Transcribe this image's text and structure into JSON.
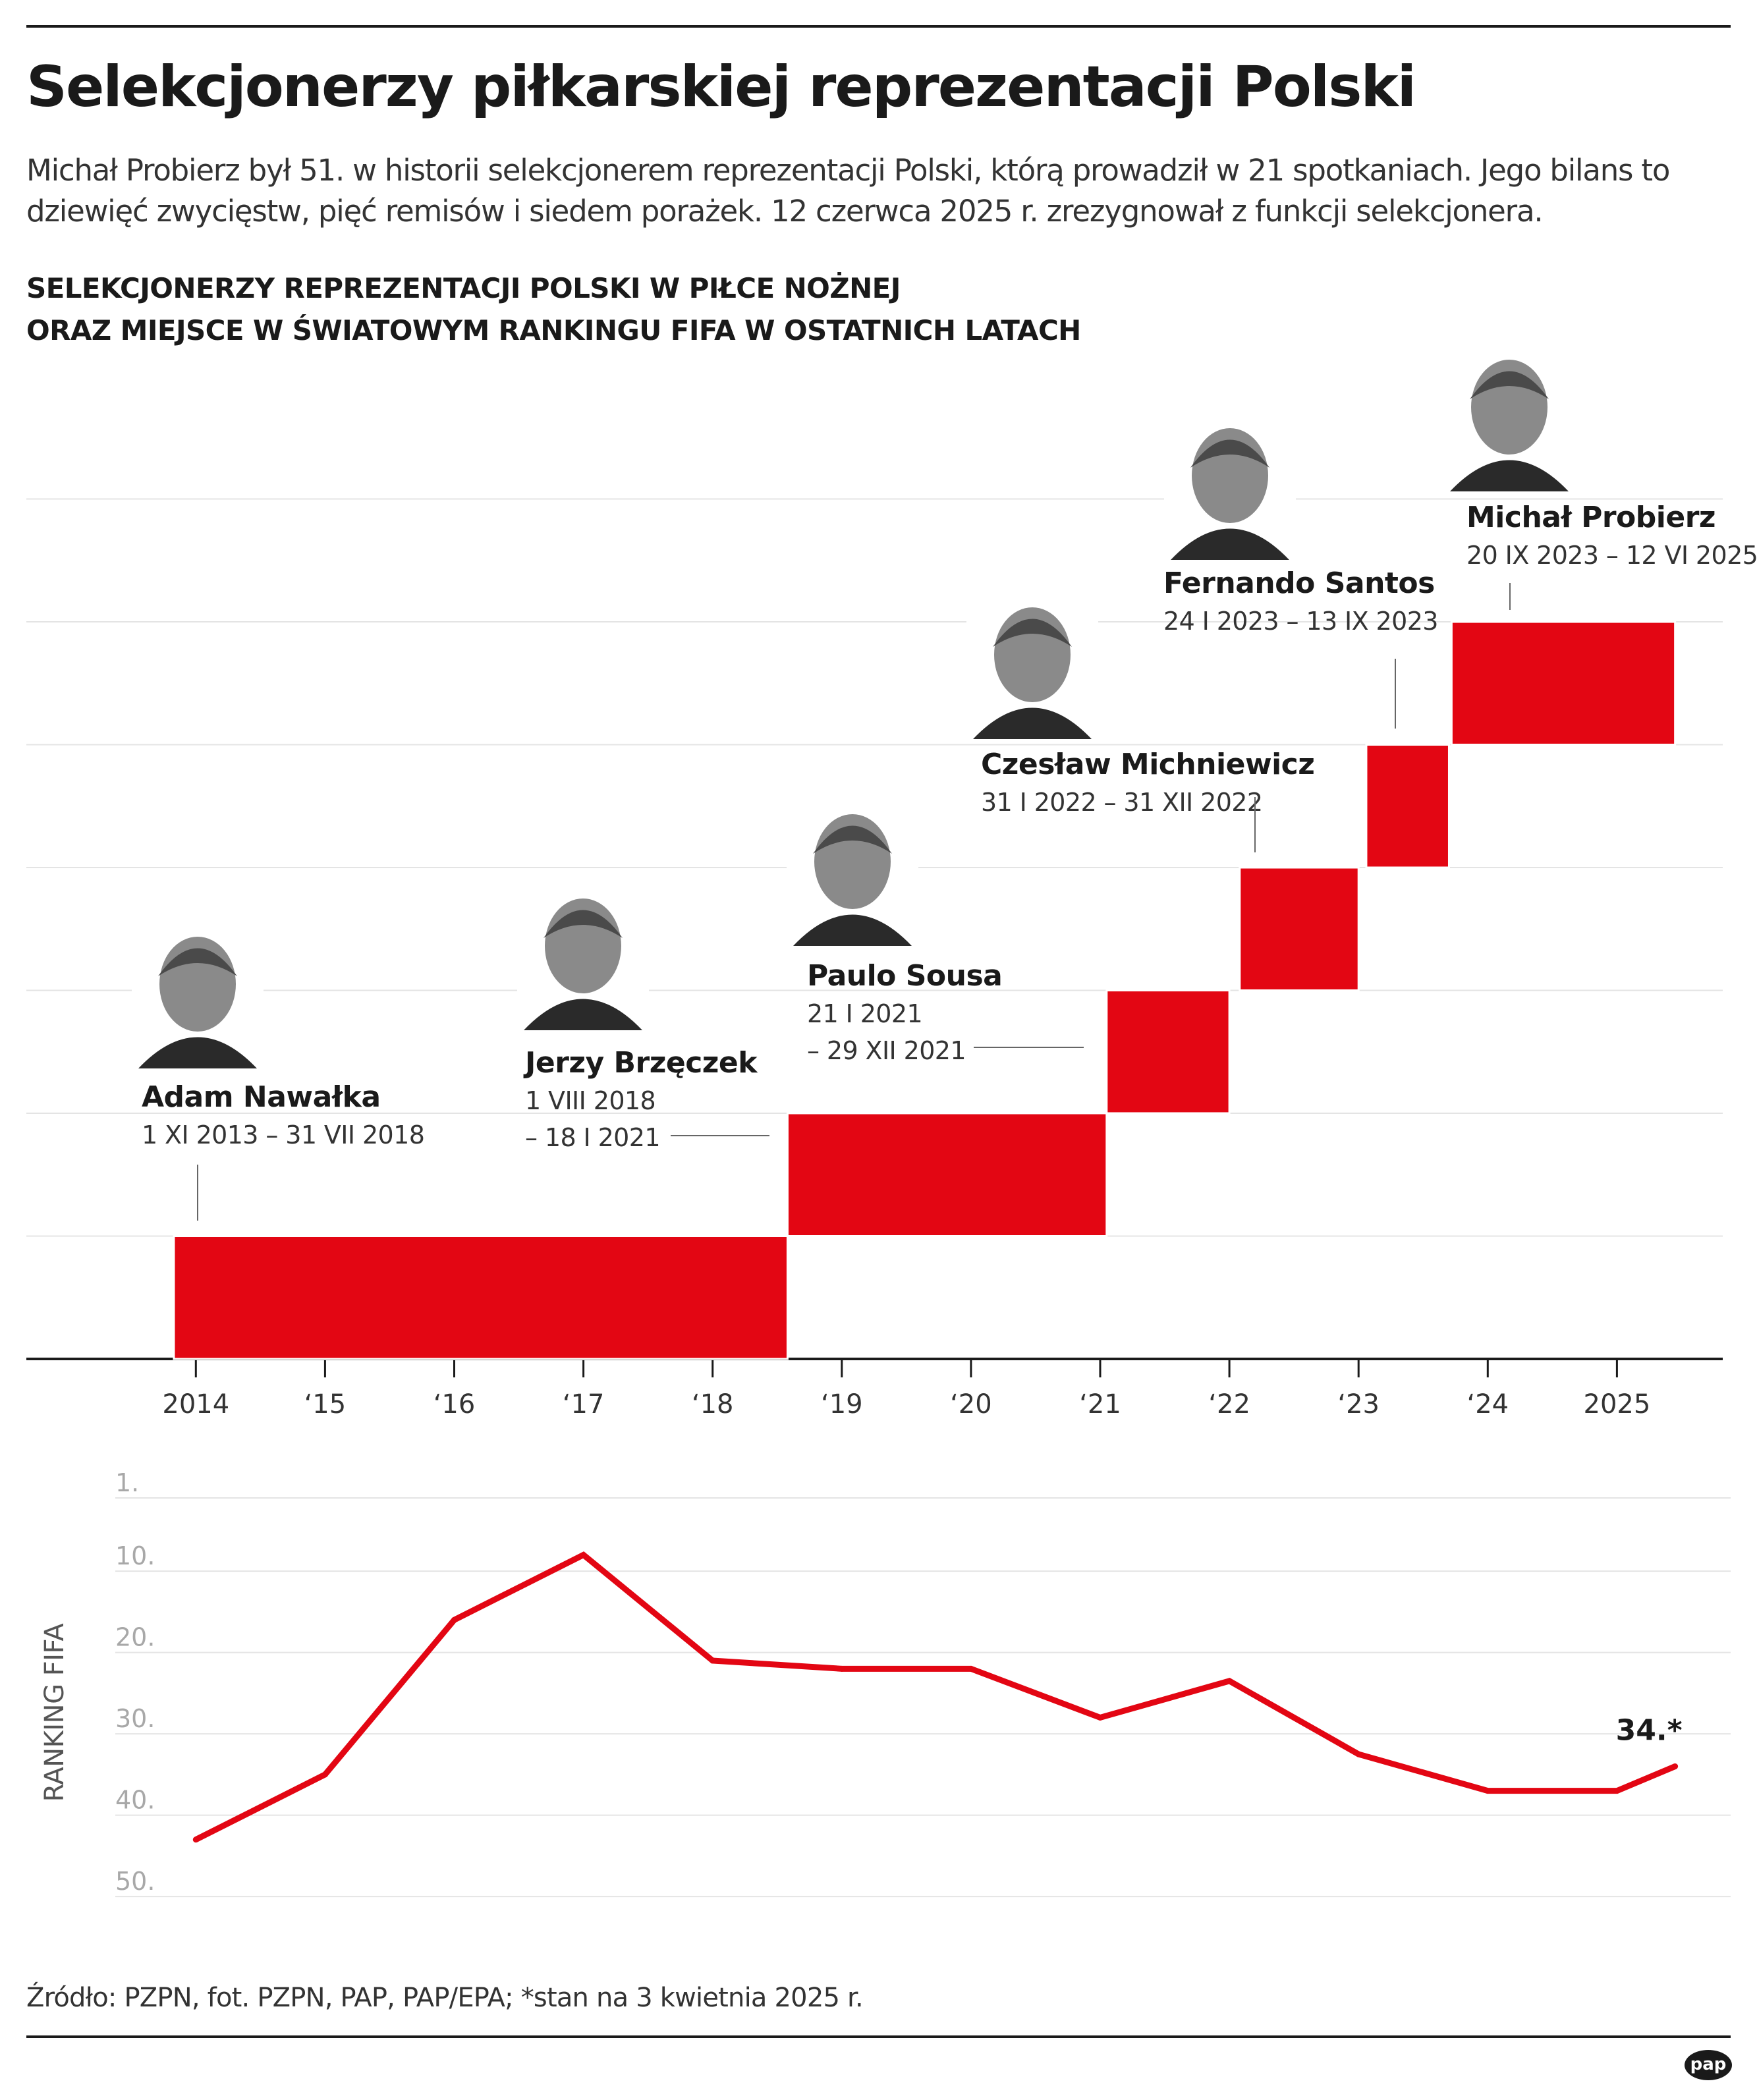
{
  "title": "Selekcjonerzy piłkarskiej reprezentacji Polski",
  "intro": "Michał Probierz był 51. w historii selekcjonerem reprezentacji Polski, którą prowadził w 21 spotkaniach. Jego bilans to dziewięć zwycięstw, pięć remisów i siedem porażek. 12 czerwca 2025 r. zrezygnował z funkcji selekcjonera.",
  "subtitle": {
    "line1": "SELEKCJONERZY REPREZENTACJI POLSKI W PIŁCE NOŻNEJ",
    "line2": "ORAZ MIEJSCE W ŚWIATOWYM RANKINGU FIFA W OSTATNICH LATACH"
  },
  "chart_data": [
    {
      "type": "timeline",
      "title": "SELEKCJONERZY REPREZENTACJI POLSKI W PIŁCE NOŻNEJ",
      "x_tick_labels": [
        "2014",
        "‘15",
        "‘16",
        "‘17",
        "‘18",
        "‘19",
        "‘20",
        "‘21",
        "‘22",
        "‘23",
        "‘24",
        "2025"
      ],
      "x_tick_years": [
        2014,
        2015,
        2016,
        2017,
        2018,
        2019,
        2020,
        2021,
        2022,
        2023,
        2024,
        2025
      ],
      "xlim": [
        2012.8,
        2025.8
      ],
      "bar_color": "#e30613",
      "coaches": [
        {
          "name": "Adam Nawałka",
          "dates_line1": "1 XI 2013 – 31 VII 2018",
          "dates_line2": "",
          "start": 2013.83,
          "end": 2018.58,
          "level": 1
        },
        {
          "name": "Jerzy Brzęczek",
          "dates_line1": "1 VIII 2018",
          "dates_line2": "– 18 I 2021",
          "start": 2018.58,
          "end": 2021.05,
          "level": 2
        },
        {
          "name": "Paulo Sousa",
          "dates_line1": "21 I 2021",
          "dates_line2": "– 29 XII 2021",
          "start": 2021.05,
          "end": 2022.0,
          "level": 3
        },
        {
          "name": "Czesław Michniewicz",
          "dates_line1": "31 I 2022 – 31 XII 2022",
          "dates_line2": "",
          "start": 2022.08,
          "end": 2023.0,
          "level": 4
        },
        {
          "name": "Fernando Santos",
          "dates_line1": "24 I 2023 – 13 IX 2023",
          "dates_line2": "",
          "start": 2023.06,
          "end": 2023.7,
          "level": 5
        },
        {
          "name": "Michał Probierz",
          "dates_line1": "20 IX 2023 – 12 VI 2025",
          "dates_line2": "",
          "start": 2023.72,
          "end": 2025.45,
          "level": 6
        }
      ]
    },
    {
      "type": "line",
      "ylabel": "RANKING FIFA",
      "y_tick_labels": [
        "1.",
        "10.",
        "20.",
        "30.",
        "40.",
        "50."
      ],
      "y_tick_values": [
        1,
        10,
        20,
        30,
        40,
        50
      ],
      "ylim": [
        1,
        50
      ],
      "y_inverted": true,
      "x": [
        2014,
        2015,
        2016,
        2017,
        2018,
        2019,
        2020,
        2021,
        2022,
        2023,
        2024,
        2025,
        2025.45
      ],
      "values": [
        43,
        35,
        16,
        8,
        21,
        22,
        22,
        28,
        23.5,
        32.5,
        37,
        37,
        34
      ],
      "series_color": "#e30613",
      "final_label": "34.*"
    }
  ],
  "source": "Źródło: PZPN, fot. PZPN, PAP, PAP/EPA; *stan na 3 kwietnia 2025 r.",
  "logo_text": "pap"
}
